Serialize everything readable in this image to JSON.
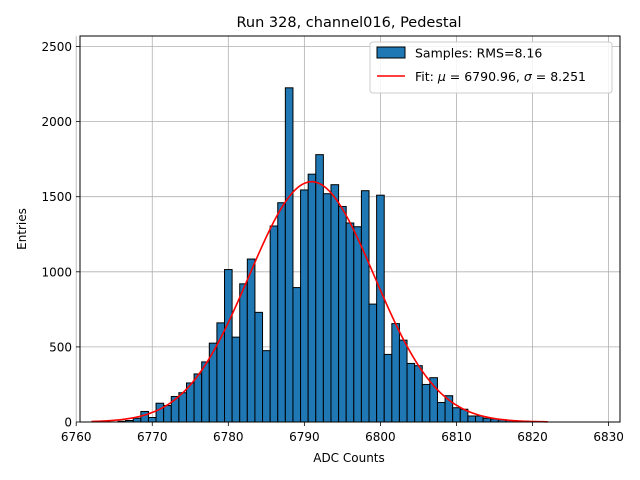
{
  "chart_data": {
    "type": "bar",
    "title": "Run 328, channel016, Pedestal",
    "xlabel": "ADC Counts",
    "ylabel": "Entries",
    "xlim": [
      6760.5,
      6831.5
    ],
    "ylim": [
      0,
      2570
    ],
    "xticks": [
      6760,
      6770,
      6780,
      6790,
      6800,
      6810,
      6820,
      6830
    ],
    "yticks": [
      0,
      500,
      1000,
      1500,
      2000,
      2500
    ],
    "grid": true,
    "legend_position": "top-right",
    "colors": {
      "bar_fill": "#1f77b4",
      "bar_edge": "#000000",
      "fit_line": "#ff0000",
      "grid": "#b0b0b0"
    },
    "series": [
      {
        "name": "Samples: RMS=8.16",
        "type": "histogram",
        "bin_width": 1,
        "bins": [
          {
            "x": 6766,
            "y": 5
          },
          {
            "x": 6767,
            "y": 10
          },
          {
            "x": 6768,
            "y": 25
          },
          {
            "x": 6769,
            "y": 70
          },
          {
            "x": 6770,
            "y": 30
          },
          {
            "x": 6771,
            "y": 125
          },
          {
            "x": 6772,
            "y": 110
          },
          {
            "x": 6773,
            "y": 170
          },
          {
            "x": 6774,
            "y": 195
          },
          {
            "x": 6775,
            "y": 260
          },
          {
            "x": 6776,
            "y": 320
          },
          {
            "x": 6777,
            "y": 400
          },
          {
            "x": 6778,
            "y": 525
          },
          {
            "x": 6779,
            "y": 660
          },
          {
            "x": 6780,
            "y": 1015
          },
          {
            "x": 6781,
            "y": 565
          },
          {
            "x": 6782,
            "y": 920
          },
          {
            "x": 6783,
            "y": 1085
          },
          {
            "x": 6784,
            "y": 730
          },
          {
            "x": 6785,
            "y": 475
          },
          {
            "x": 6786,
            "y": 1305
          },
          {
            "x": 6787,
            "y": 1460
          },
          {
            "x": 6788,
            "y": 2225
          },
          {
            "x": 6789,
            "y": 895
          },
          {
            "x": 6790,
            "y": 1545
          },
          {
            "x": 6791,
            "y": 1650
          },
          {
            "x": 6792,
            "y": 1780
          },
          {
            "x": 6793,
            "y": 1520
          },
          {
            "x": 6794,
            "y": 1580
          },
          {
            "x": 6795,
            "y": 1435
          },
          {
            "x": 6796,
            "y": 1325
          },
          {
            "x": 6797,
            "y": 1300
          },
          {
            "x": 6798,
            "y": 1540
          },
          {
            "x": 6799,
            "y": 785
          },
          {
            "x": 6800,
            "y": 1510
          },
          {
            "x": 6801,
            "y": 450
          },
          {
            "x": 6802,
            "y": 655
          },
          {
            "x": 6803,
            "y": 545
          },
          {
            "x": 6804,
            "y": 390
          },
          {
            "x": 6805,
            "y": 375
          },
          {
            "x": 6806,
            "y": 250
          },
          {
            "x": 6807,
            "y": 295
          },
          {
            "x": 6808,
            "y": 130
          },
          {
            "x": 6809,
            "y": 175
          },
          {
            "x": 6810,
            "y": 95
          },
          {
            "x": 6811,
            "y": 85
          },
          {
            "x": 6812,
            "y": 40
          },
          {
            "x": 6813,
            "y": 40
          },
          {
            "x": 6814,
            "y": 25
          },
          {
            "x": 6815,
            "y": 20
          },
          {
            "x": 6816,
            "y": 15
          },
          {
            "x": 6817,
            "y": 10
          },
          {
            "x": 6818,
            "y": 5
          },
          {
            "x": 6819,
            "y": 5
          }
        ]
      },
      {
        "name": "Fit: μ = 6790.96, σ = 8.251",
        "type": "line",
        "function": "gaussian",
        "amplitude": 1600,
        "mu": 6790.96,
        "sigma": 8.251,
        "x_range": [
          6762,
          6822
        ]
      }
    ],
    "legend": {
      "samples_label": "Samples: RMS=8.16",
      "fit_prefix": "Fit: ",
      "mu_symbol": "μ",
      "mu_text": " = 6790.96, ",
      "sigma_symbol": "σ",
      "sigma_text": " = 8.251"
    }
  }
}
